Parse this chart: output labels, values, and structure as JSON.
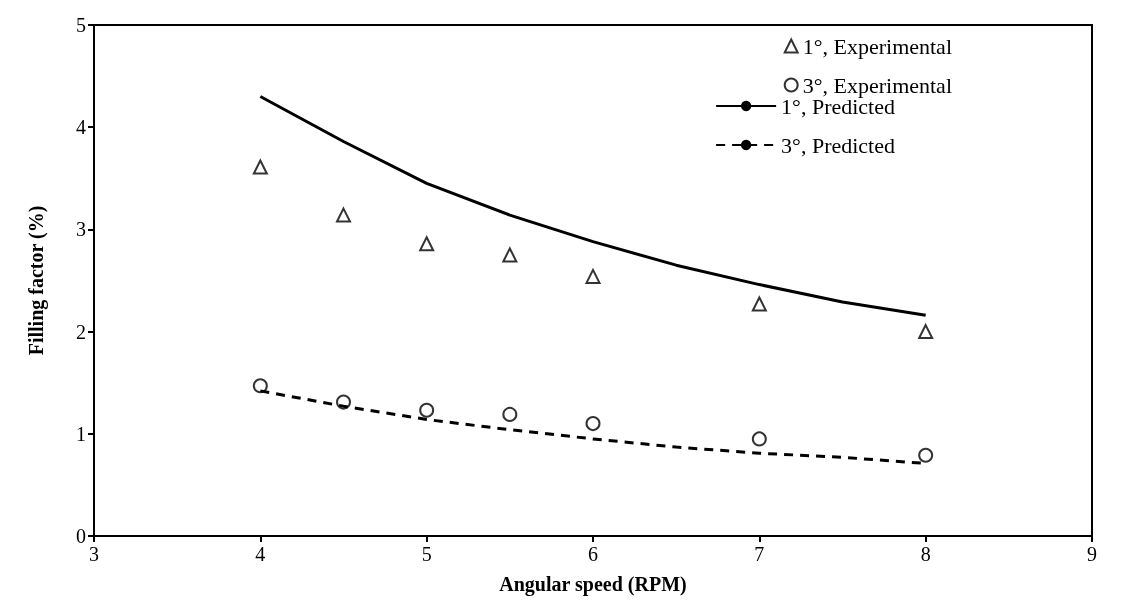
{
  "chart_data": {
    "type": "scatter",
    "xlabel": "Angular speed (RPM)",
    "ylabel": "Filling factor (%)",
    "xlim": [
      3,
      9
    ],
    "xticks": [
      3,
      4,
      5,
      6,
      7,
      8,
      9
    ],
    "ylim": [
      0,
      5
    ],
    "yticks": [
      0,
      1,
      2,
      3,
      4,
      5
    ],
    "grid": false,
    "legend": "top right",
    "series": [
      {
        "name": "1°, Experimental",
        "marker": "triangle",
        "color": "#000000",
        "x": [
          4,
          4.5,
          5,
          5.5,
          6,
          7,
          8
        ],
        "values": [
          3.61,
          3.14,
          2.86,
          2.75,
          2.54,
          2.27,
          2.0
        ]
      },
      {
        "name": "3°, Experimental",
        "marker": "circle",
        "color": "#000000",
        "x": [
          4,
          4.5,
          5,
          5.5,
          6,
          7,
          8
        ],
        "values": [
          1.47,
          1.31,
          1.23,
          1.19,
          1.1,
          0.95,
          0.79
        ]
      },
      {
        "name": "1°, Predicted",
        "type": "line",
        "line_style": "solid",
        "marker": "none",
        "color": "#000000",
        "x": [
          4,
          4.5,
          5,
          5.5,
          6,
          6.5,
          7,
          7.5,
          8
        ],
        "values": [
          4.3,
          3.86,
          3.45,
          3.14,
          2.88,
          2.65,
          2.46,
          2.29,
          2.16
        ]
      },
      {
        "name": "3°, Predicted",
        "type": "line",
        "line_style": "dashed",
        "marker": "none",
        "color": "#000000",
        "x": [
          4,
          4.5,
          5,
          5.5,
          6,
          6.5,
          7,
          7.5,
          8
        ],
        "values": [
          1.42,
          1.27,
          1.14,
          1.04,
          0.95,
          0.87,
          0.81,
          0.77,
          0.71
        ]
      }
    ]
  }
}
